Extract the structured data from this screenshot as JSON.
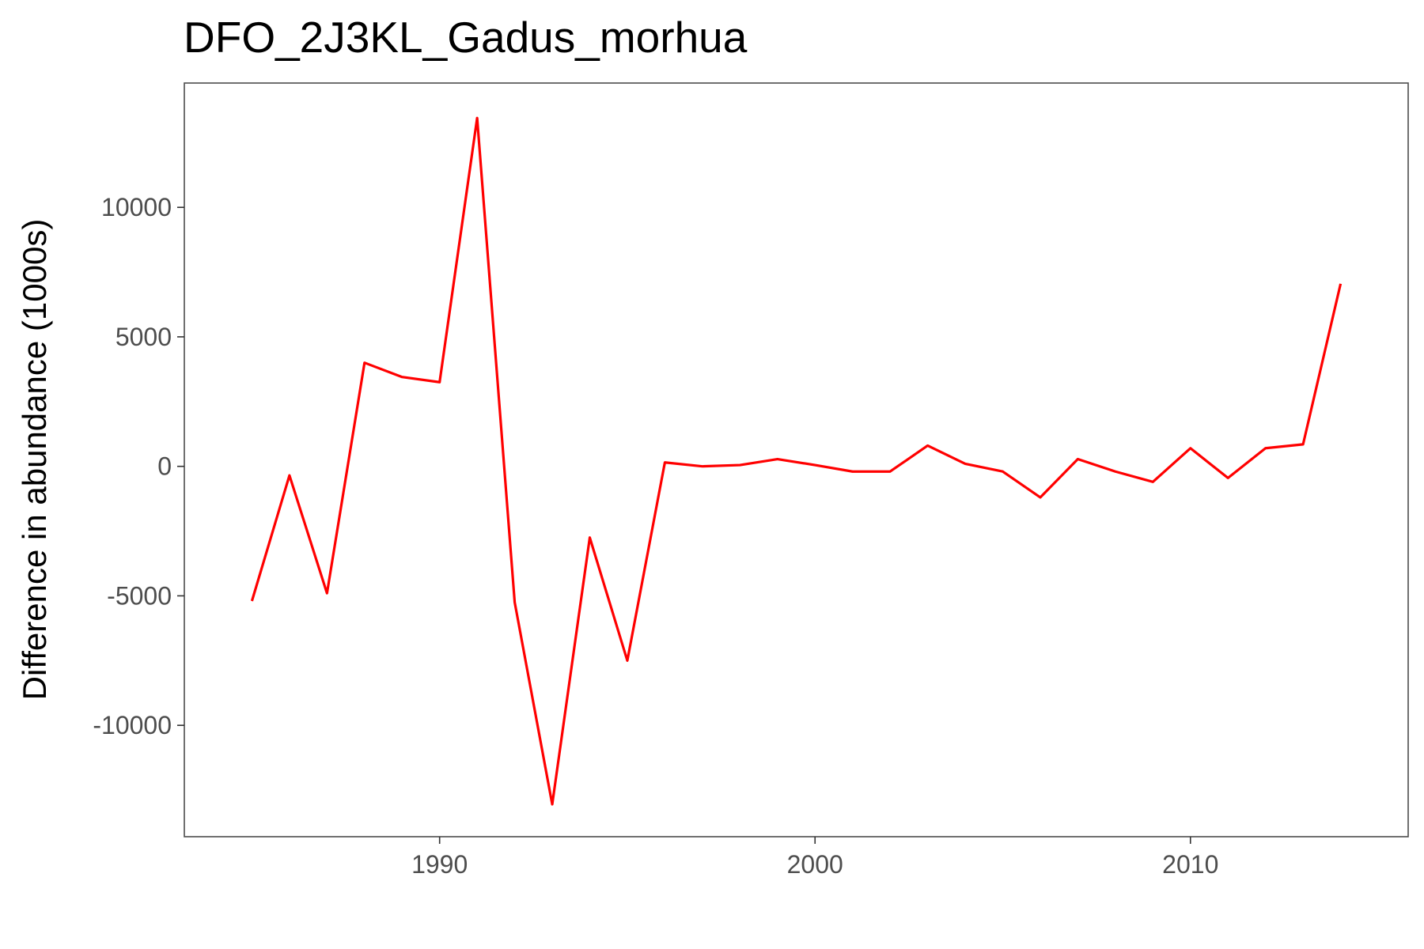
{
  "chart_data": {
    "type": "line",
    "title": "DFO_2J3KL_Gadus_morhua",
    "xlabel": "",
    "ylabel": "Difference in abundance (1000s)",
    "xlim": [
      1983.2,
      2015.8
    ],
    "ylim": [
      -14300,
      14800
    ],
    "x_ticks": [
      1990,
      2000,
      2010
    ],
    "x_tick_labels": [
      "1990",
      "2000",
      "2010"
    ],
    "y_ticks": [
      10000,
      5000,
      0,
      -5000,
      -10000
    ],
    "y_tick_labels": [
      "10000",
      "5000",
      "0",
      "-5000",
      "-10000"
    ],
    "grid": false,
    "legend": "none",
    "series": [
      {
        "color": "#ff0000",
        "x": [
          1985,
          1986,
          1987,
          1988,
          1989,
          1990,
          1991,
          1992,
          1993,
          1994,
          1995,
          1996,
          1997,
          1998,
          1999,
          2000,
          2001,
          2002,
          2003,
          2004,
          2005,
          2006,
          2007,
          2008,
          2009,
          2010,
          2011,
          2012,
          2013,
          2014
        ],
        "y": [
          -5200,
          -350,
          -4900,
          4000,
          3450,
          3250,
          13450,
          -5250,
          -13050,
          -2750,
          -7500,
          150,
          0,
          50,
          280,
          50,
          -200,
          -200,
          800,
          100,
          -200,
          -1200,
          280,
          -200,
          -600,
          700,
          -450,
          700,
          850,
          7050
        ]
      }
    ]
  }
}
